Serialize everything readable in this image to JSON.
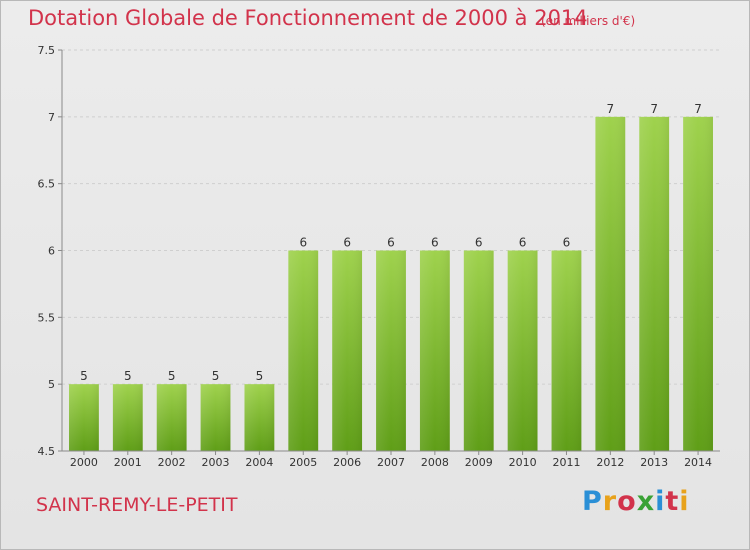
{
  "header": {
    "title": "Dotation Globale de Fonctionnement de 2000 à 2014",
    "subtitle": "(en milliers d'€)"
  },
  "footer": {
    "city": "SAINT-REMY-LE-PETIT",
    "brand": "Proxiti",
    "brand_colors": [
      "#2a8fd6",
      "#e8a21b",
      "#d2334b",
      "#3aa235",
      "#2a8fd6",
      "#d2334b",
      "#e8a21b"
    ]
  },
  "colors": {
    "bar_top": "#9fd24d",
    "bar_bottom": "#5f9e17",
    "title": "#d2334b",
    "gridline": "#cfcfcf",
    "axis": "#8a8a8a"
  },
  "chart_data": {
    "type": "bar",
    "title": "Dotation Globale de Fonctionnement de 2000 à 2014",
    "subtitle": "(en milliers d'€)",
    "categories": [
      "2000",
      "2001",
      "2002",
      "2003",
      "2004",
      "2005",
      "2006",
      "2007",
      "2008",
      "2009",
      "2010",
      "2011",
      "2012",
      "2013",
      "2014"
    ],
    "values": [
      5,
      5,
      5,
      5,
      5,
      6,
      6,
      6,
      6,
      6,
      6,
      6,
      7,
      7,
      7
    ],
    "ylim": [
      4.5,
      7.5
    ],
    "yticks": [
      "4.5",
      "5",
      "5.5",
      "6",
      "6.5",
      "7",
      "7.5"
    ],
    "grid": true,
    "legend": "none"
  }
}
